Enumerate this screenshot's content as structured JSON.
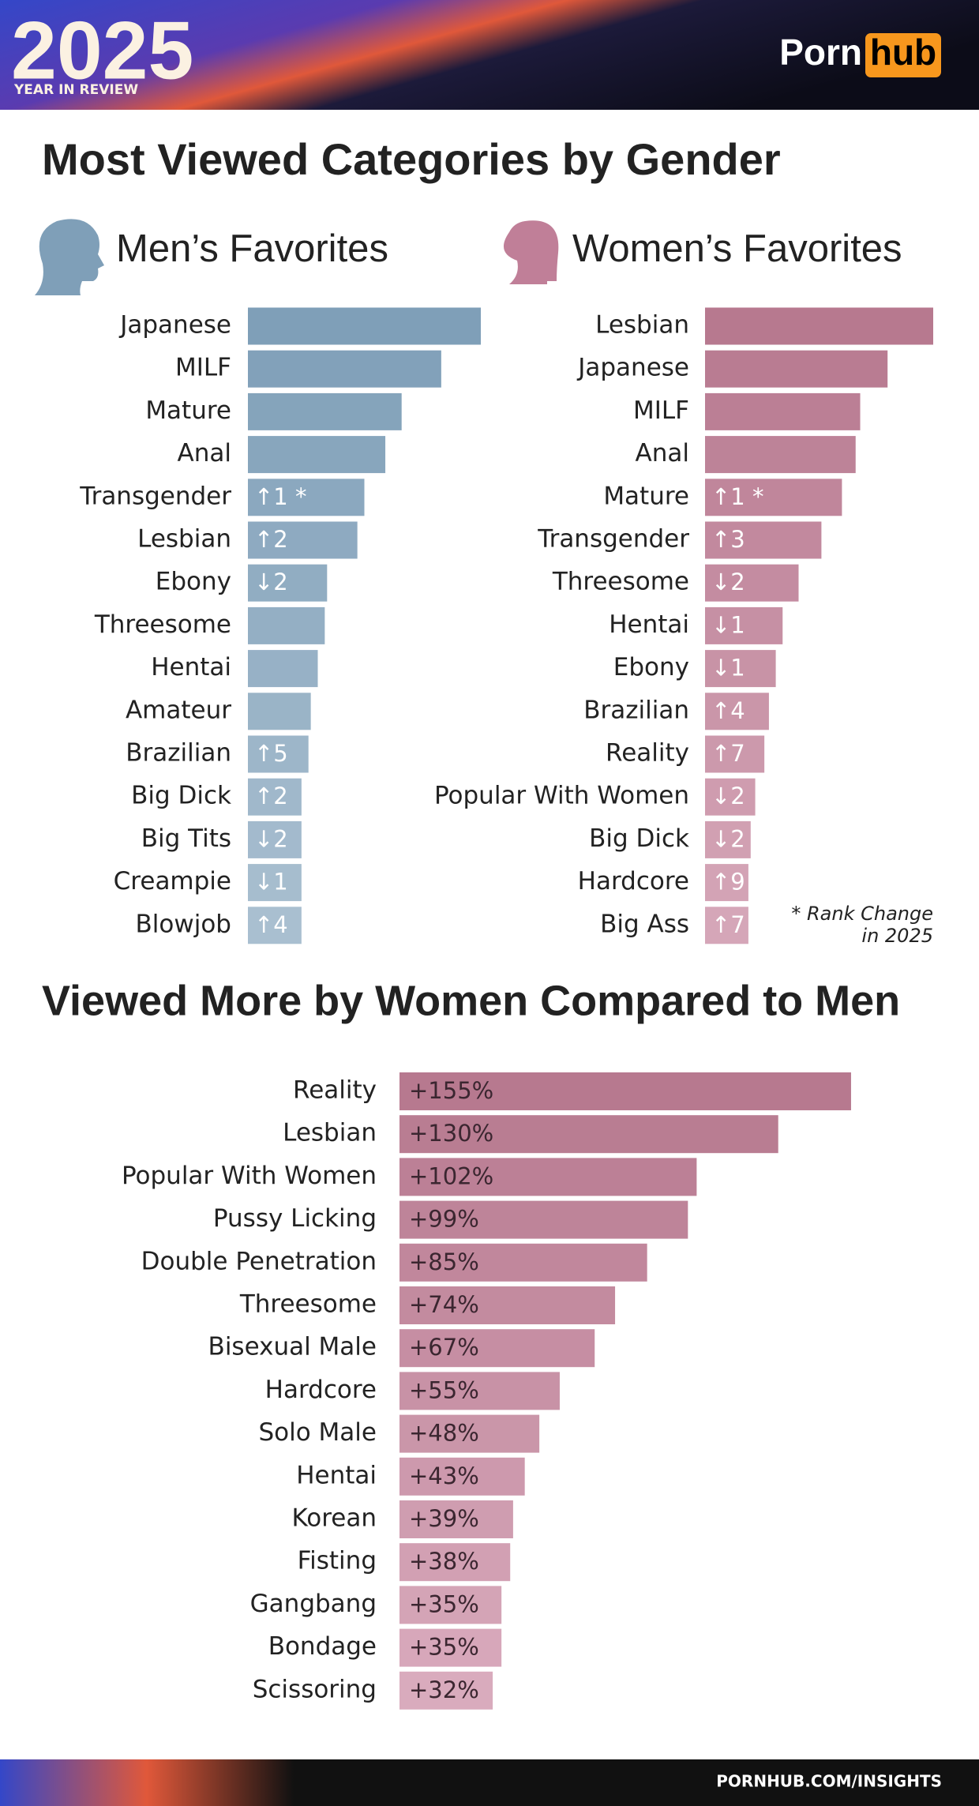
{
  "header": {
    "year": "2025",
    "subtitle": "YEAR IN REVIEW",
    "logo": [
      "Porn",
      "hub"
    ]
  },
  "title": "Most Viewed Categories by Gender",
  "chart_data": [
    {
      "type": "bar",
      "title": "Men’s Favorites",
      "categories": [
        "Japanese",
        "MILF",
        "Mature",
        "Anal",
        "Transgender",
        "Lesbian",
        "Ebony",
        "Threesome",
        "Hentai",
        "Amateur",
        "Brazilian",
        "Big Dick",
        "Big Tits",
        "Creampie",
        "Blowjob"
      ],
      "values": [
        100,
        83,
        66,
        59,
        50,
        47,
        34,
        33,
        30,
        27,
        26,
        23,
        23,
        23,
        23
      ],
      "rank_changes": [
        null,
        null,
        null,
        null,
        "↑1 *",
        "↑2",
        "↓2",
        null,
        null,
        null,
        "↑5",
        "↑2",
        "↓2",
        "↓1",
        "↑4"
      ],
      "colors": [
        "#7f9fb8",
        "#a9bfd0"
      ]
    },
    {
      "type": "bar",
      "title": "Women’s Favorites",
      "categories": [
        "Lesbian",
        "Japanese",
        "MILF",
        "Anal",
        "Mature",
        "Transgender",
        "Threesome",
        "Hentai",
        "Ebony",
        "Brazilian",
        "Reality",
        "Popular With Women",
        "Big Dick",
        "Hardcore",
        "Big Ass"
      ],
      "values": [
        100,
        80,
        68,
        66,
        60,
        51,
        41,
        34,
        31,
        28,
        26,
        22,
        20,
        19,
        19
      ],
      "rank_changes": [
        null,
        null,
        null,
        null,
        "↑1 *",
        "↑3",
        "↓2",
        "↓1",
        "↓1",
        "↑4",
        "↑7",
        "↓2",
        "↓2",
        "↑9",
        "↑7"
      ],
      "colors": [
        "#b7798f",
        "#d5a6b8"
      ],
      "footnote": [
        "* Rank Change",
        "in 2025"
      ]
    },
    {
      "type": "bar",
      "title": "Viewed More by Women Compared to Men",
      "categories": [
        "Reality",
        "Lesbian",
        "Popular With Women",
        "Pussy Licking",
        "Double Penetration",
        "Threesome",
        "Bisexual Male",
        "Hardcore",
        "Solo Male",
        "Hentai",
        "Korean",
        "Fisting",
        "Gangbang",
        "Bondage",
        "Scissoring"
      ],
      "values": [
        155,
        130,
        102,
        99,
        85,
        74,
        67,
        55,
        48,
        43,
        39,
        38,
        35,
        35,
        32
      ],
      "value_labels": [
        "+155%",
        "+130%",
        "+102%",
        "+99%",
        "+85%",
        "+74%",
        "+67%",
        "+55%",
        "+48%",
        "+43%",
        "+39%",
        "+38%",
        "+35%",
        "+35%",
        "+32%"
      ],
      "colors": [
        "#b7798f",
        "#d9abbd"
      ]
    }
  ],
  "footer": "PORNHUB.COM/INSIGHTS"
}
